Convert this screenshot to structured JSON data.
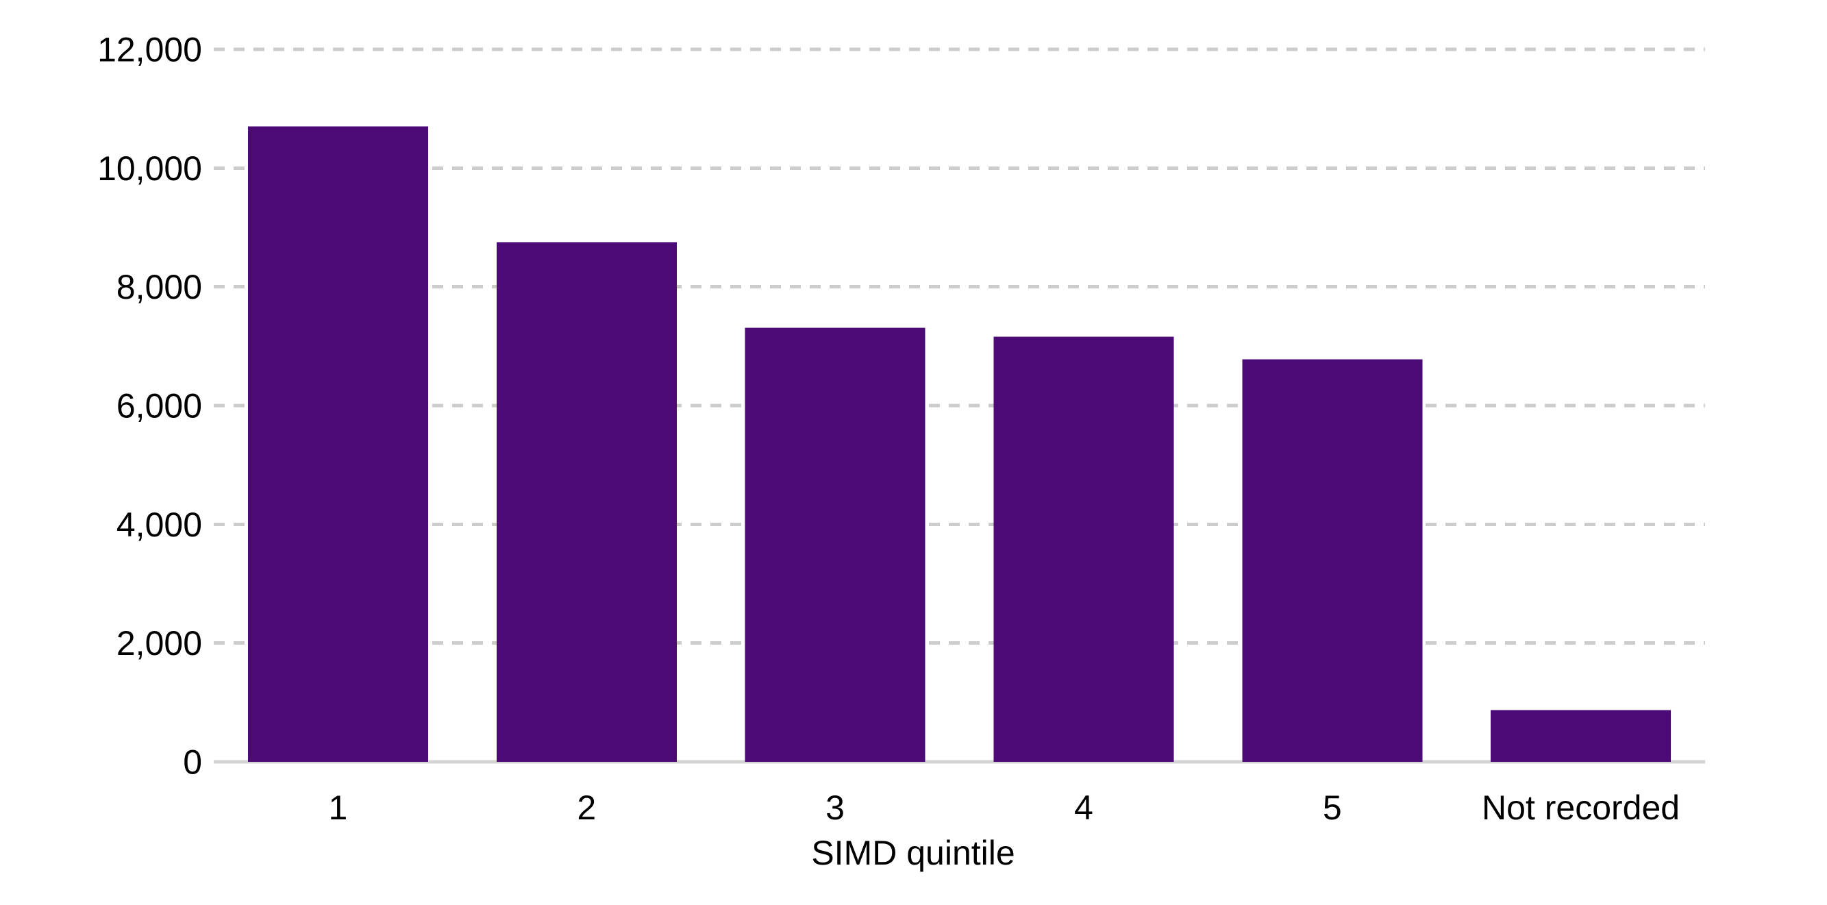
{
  "chart_data": {
    "type": "bar",
    "title": "",
    "xlabel": "SIMD quintile",
    "ylabel": "",
    "categories": [
      "1",
      "2",
      "3",
      "4",
      "5",
      "Not recorded"
    ],
    "values": [
      10700,
      8750,
      7310,
      7160,
      6780,
      870
    ],
    "ylim": [
      0,
      12000
    ],
    "ytick_step": 2000,
    "ytick_labels": [
      "0",
      "2,000",
      "4,000",
      "6,000",
      "8,000",
      "10,000",
      "12,000"
    ],
    "grid": "horizontal-dashed",
    "legend_position": "none",
    "colors": {
      "bar": "#4C0A77",
      "gridline": "#cccccc",
      "axis_line": "#d4d4d4",
      "text": "#000000",
      "background": "#ffffff"
    }
  }
}
